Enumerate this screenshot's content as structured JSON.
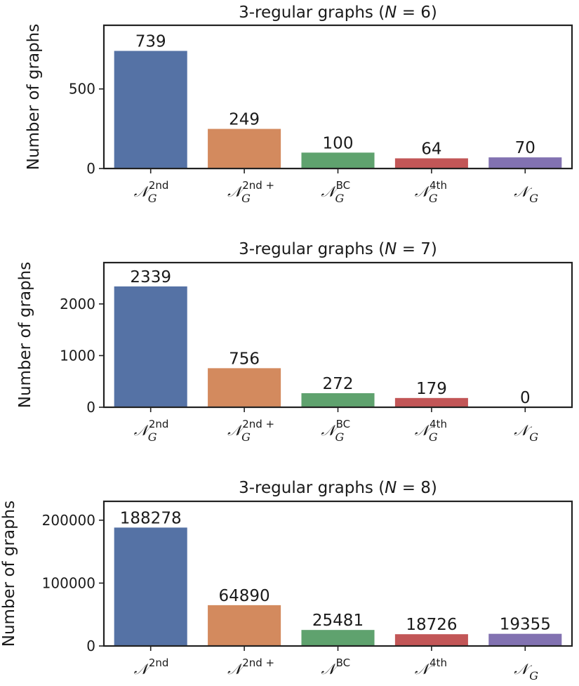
{
  "chart_data": [
    {
      "type": "bar",
      "title": "3-regular graphs (N = 6)",
      "title_parts": {
        "prefix": "3-regular graphs (",
        "var": "N",
        "suffix": " = 6)"
      },
      "ylabel": "Number of graphs",
      "xlabel": "",
      "categories": [
        {
          "base": "𝒩",
          "sub": "G",
          "sup": "2nd"
        },
        {
          "base": "𝒩",
          "sub": "G",
          "sup": "2nd +"
        },
        {
          "base": "𝒩",
          "sub": "G",
          "sup": "BC"
        },
        {
          "base": "𝒩",
          "sub": "G",
          "sup": "4th"
        },
        {
          "base": "𝒩",
          "sub": "G",
          "sup": ""
        }
      ],
      "values": [
        739,
        249,
        100,
        64,
        70
      ],
      "data_labels": [
        "739",
        "249",
        "100",
        "64",
        "70"
      ],
      "ylim": [
        0,
        900
      ],
      "yticks": [
        0,
        500
      ],
      "ytick_labels": [
        "0",
        "500"
      ],
      "grid": false
    },
    {
      "type": "bar",
      "title": "3-regular graphs (N = 7)",
      "title_parts": {
        "prefix": "3-regular graphs (",
        "var": "N",
        "suffix": " = 7)"
      },
      "ylabel": "Number of graphs",
      "xlabel": "",
      "categories": [
        {
          "base": "𝒩",
          "sub": "G",
          "sup": "2nd"
        },
        {
          "base": "𝒩",
          "sub": "G",
          "sup": "2nd +"
        },
        {
          "base": "𝒩",
          "sub": "G",
          "sup": "BC"
        },
        {
          "base": "𝒩",
          "sub": "G",
          "sup": "4th"
        },
        {
          "base": "𝒩",
          "sub": "G",
          "sup": ""
        }
      ],
      "values": [
        2339,
        756,
        272,
        179,
        0
      ],
      "data_labels": [
        "2339",
        "756",
        "272",
        "179",
        "0"
      ],
      "ylim": [
        0,
        2800
      ],
      "yticks": [
        0,
        1000,
        2000
      ],
      "ytick_labels": [
        "0",
        "1000",
        "2000"
      ],
      "grid": false
    },
    {
      "type": "bar",
      "title": "3-regular graphs (N = 8)",
      "title_parts": {
        "prefix": "3-regular graphs (",
        "var": "N",
        "suffix": " = 8)"
      },
      "ylabel": "Number of graphs",
      "xlabel": "",
      "categories": [
        {
          "base": "𝒩",
          "sub": "",
          "sup": "2nd"
        },
        {
          "base": "𝒩",
          "sub": "",
          "sup": "2nd +"
        },
        {
          "base": "𝒩",
          "sub": "",
          "sup": "BC"
        },
        {
          "base": "𝒩",
          "sub": "",
          "sup": "4th"
        },
        {
          "base": "𝒩",
          "sub": "G",
          "sup": ""
        }
      ],
      "values": [
        188278,
        64890,
        25481,
        18726,
        19355
      ],
      "data_labels": [
        "188278",
        "64890",
        "25481",
        "18726",
        "19355"
      ],
      "ylim": [
        0,
        230000
      ],
      "yticks": [
        0,
        100000,
        200000
      ],
      "ytick_labels": [
        "0",
        "100000",
        "200000"
      ],
      "grid": false
    }
  ],
  "colors": [
    "#5572a5",
    "#d38a5e",
    "#5fa26e",
    "#c25657",
    "#8272b1"
  ],
  "axis_color": "#222222"
}
